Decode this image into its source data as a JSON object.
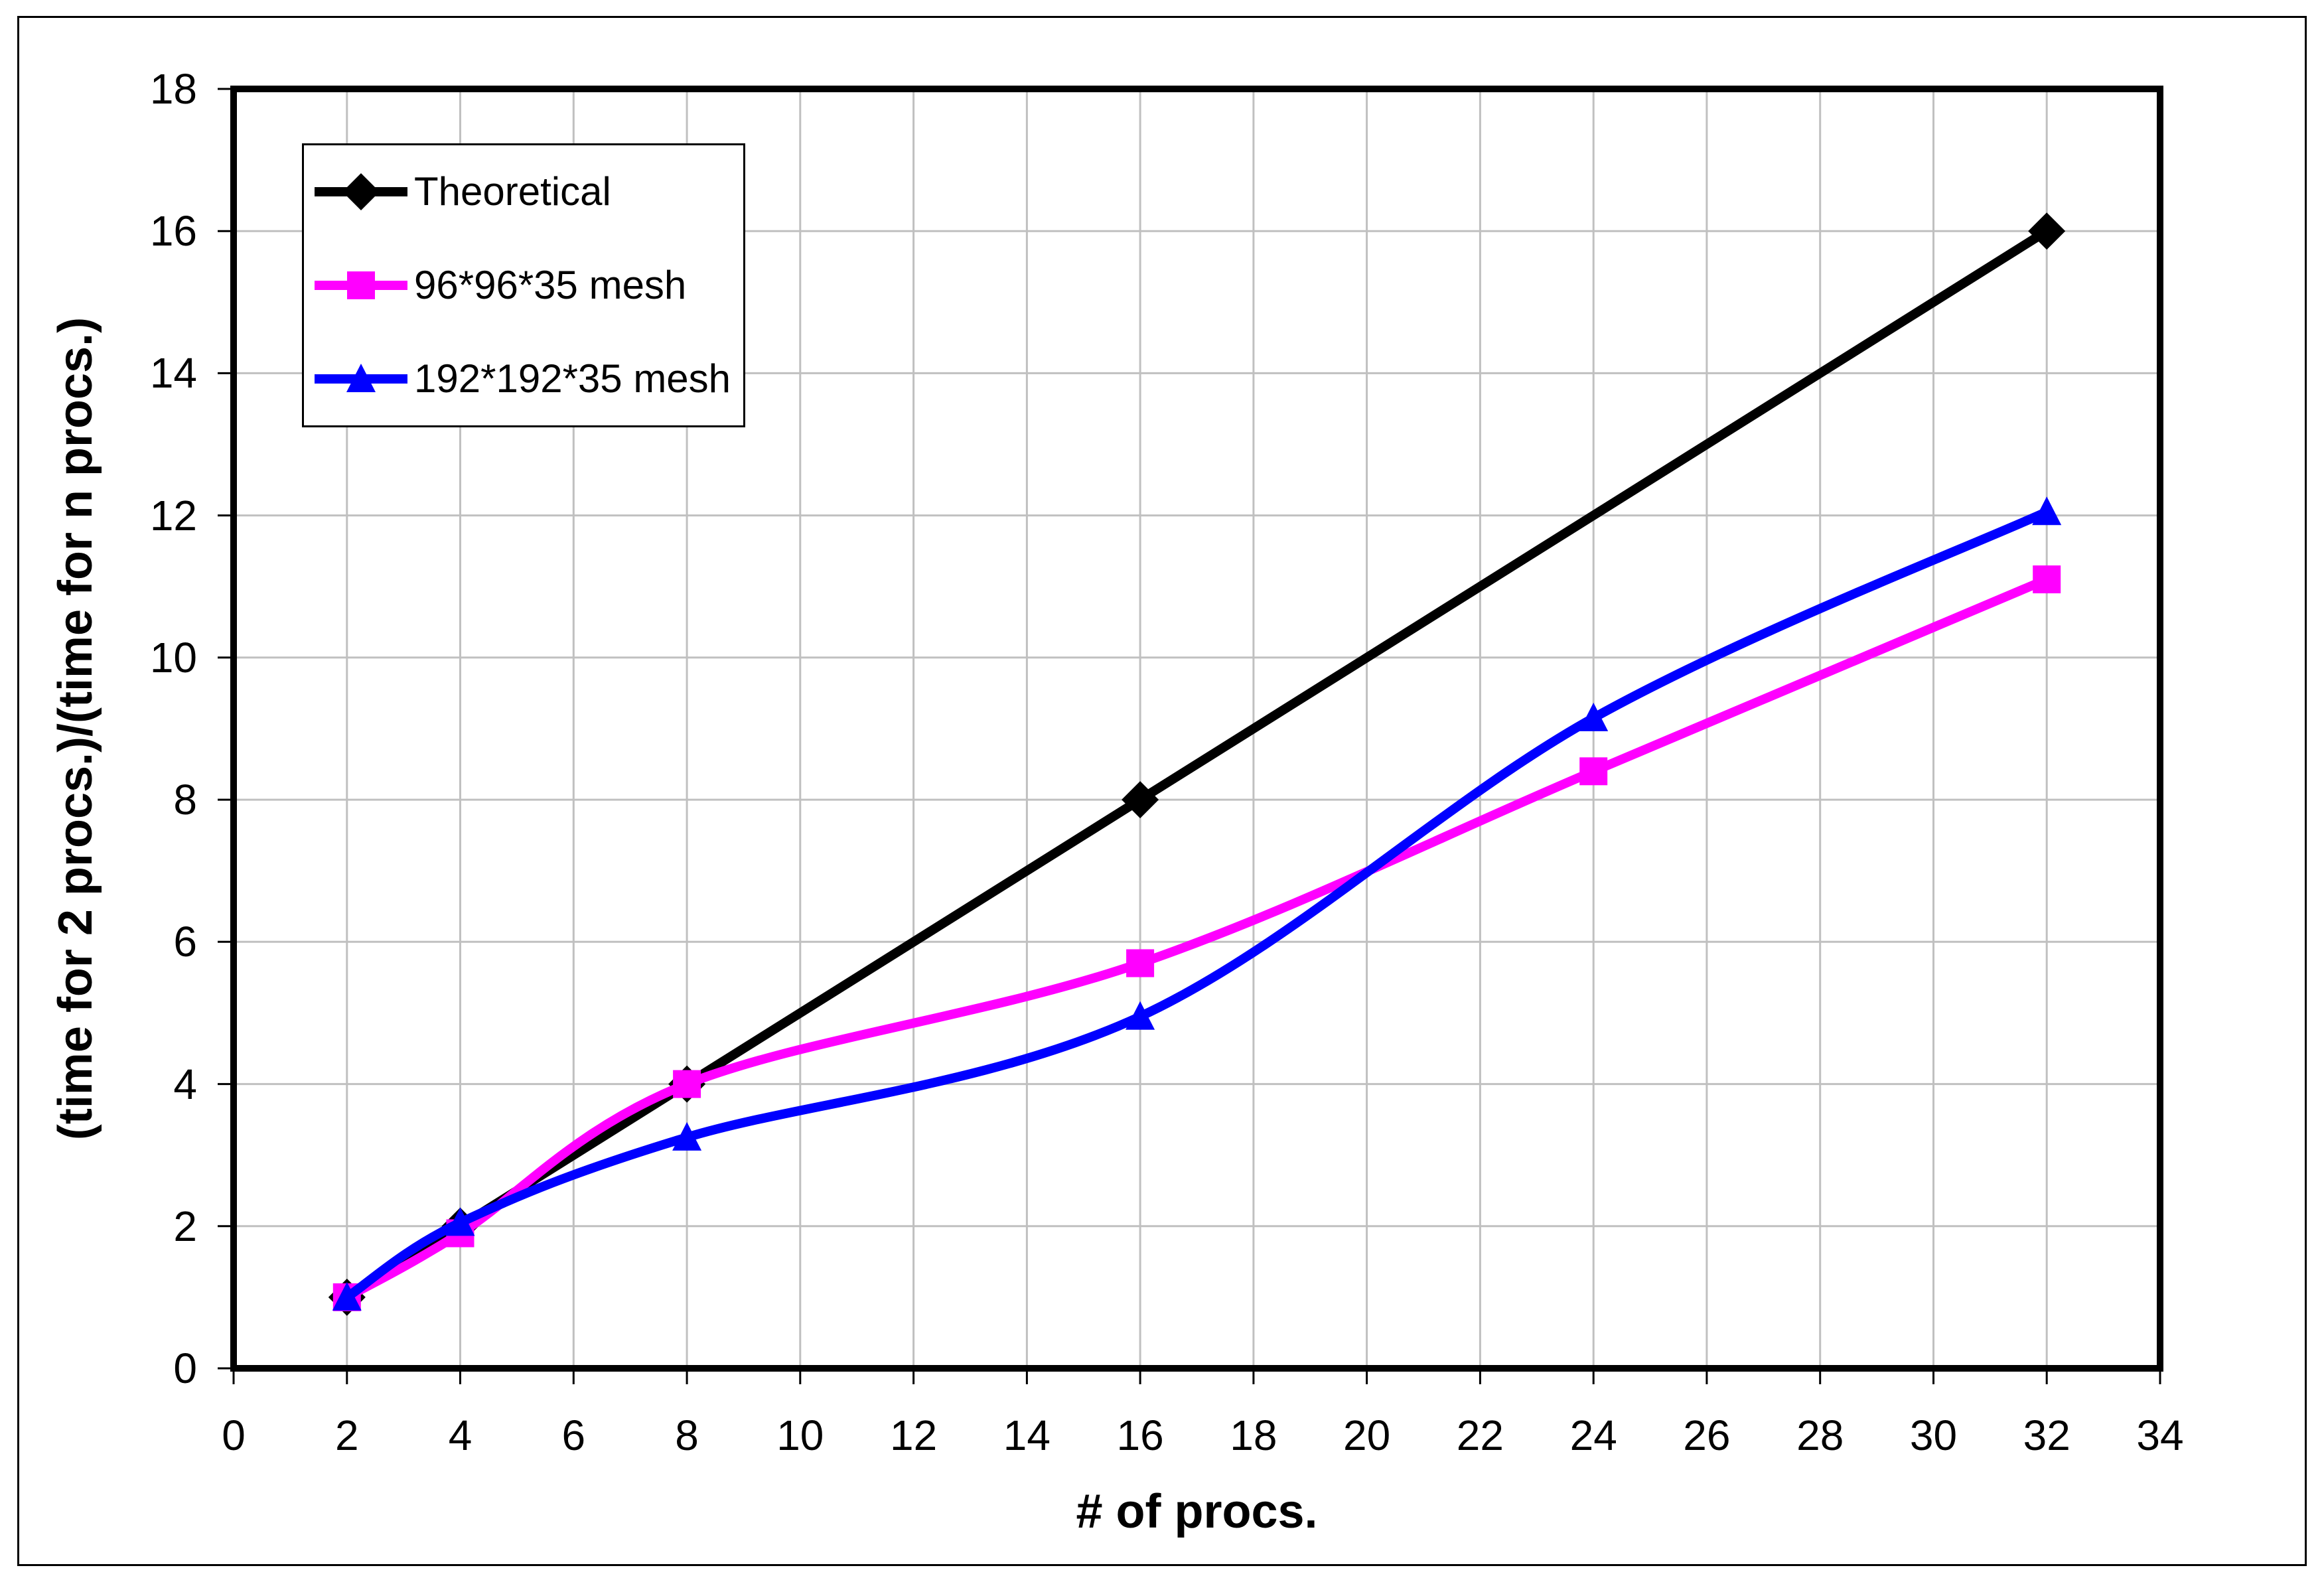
{
  "figure": {
    "background": "#FFFFFF",
    "frame_border_color": "#000000"
  },
  "chart_data": {
    "type": "line",
    "title": "",
    "xlabel": "# of procs.",
    "ylabel": "(time for 2 procs.)/(time for n procs.)",
    "xlim": [
      0,
      34
    ],
    "ylim": [
      0,
      18
    ],
    "xticks": [
      0,
      2,
      4,
      6,
      8,
      10,
      12,
      14,
      16,
      18,
      20,
      22,
      24,
      26,
      28,
      30,
      32,
      34
    ],
    "yticks": [
      0,
      2,
      4,
      6,
      8,
      10,
      12,
      14,
      16,
      18
    ],
    "grid": true,
    "grid_color": "#C0C0C0",
    "axis_color": "#000000",
    "legend_position": "top-left",
    "series": [
      {
        "name": "Theoretical",
        "color": "#000000",
        "marker": "diamond",
        "smooth": false,
        "x": [
          2,
          4,
          8,
          16,
          32
        ],
        "y": [
          1,
          2,
          4,
          8,
          16
        ]
      },
      {
        "name": "96*96*35 mesh",
        "color": "#FF00FF",
        "marker": "square",
        "smooth": true,
        "x": [
          2,
          4,
          8,
          16,
          24,
          32
        ],
        "y": [
          1.0,
          1.9,
          4.0,
          5.7,
          8.4,
          11.1
        ]
      },
      {
        "name": "192*192*35 mesh",
        "color": "#0000FF",
        "marker": "triangle",
        "smooth": true,
        "x": [
          2,
          4,
          8,
          16,
          24,
          32
        ],
        "y": [
          1.0,
          2.05,
          3.25,
          4.95,
          9.15,
          12.05
        ]
      }
    ]
  }
}
